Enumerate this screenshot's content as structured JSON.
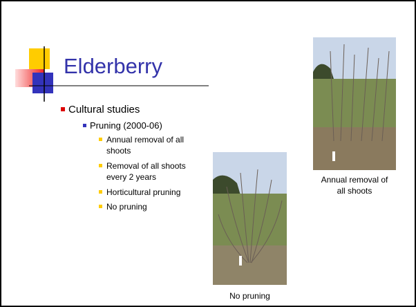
{
  "slide": {
    "title": "Elderberry",
    "bullets": [
      {
        "text": "Cultural studies",
        "children": [
          {
            "text": "Pruning (2000-06)",
            "children": [
              "Annual removal of all shoots",
              "Removal of all shoots every 2 years",
              "Horticultural pruning",
              "No pruning"
            ]
          }
        ]
      }
    ],
    "photos": [
      {
        "caption": "Annual removal of all shoots"
      },
      {
        "caption": "No pruning"
      }
    ]
  }
}
